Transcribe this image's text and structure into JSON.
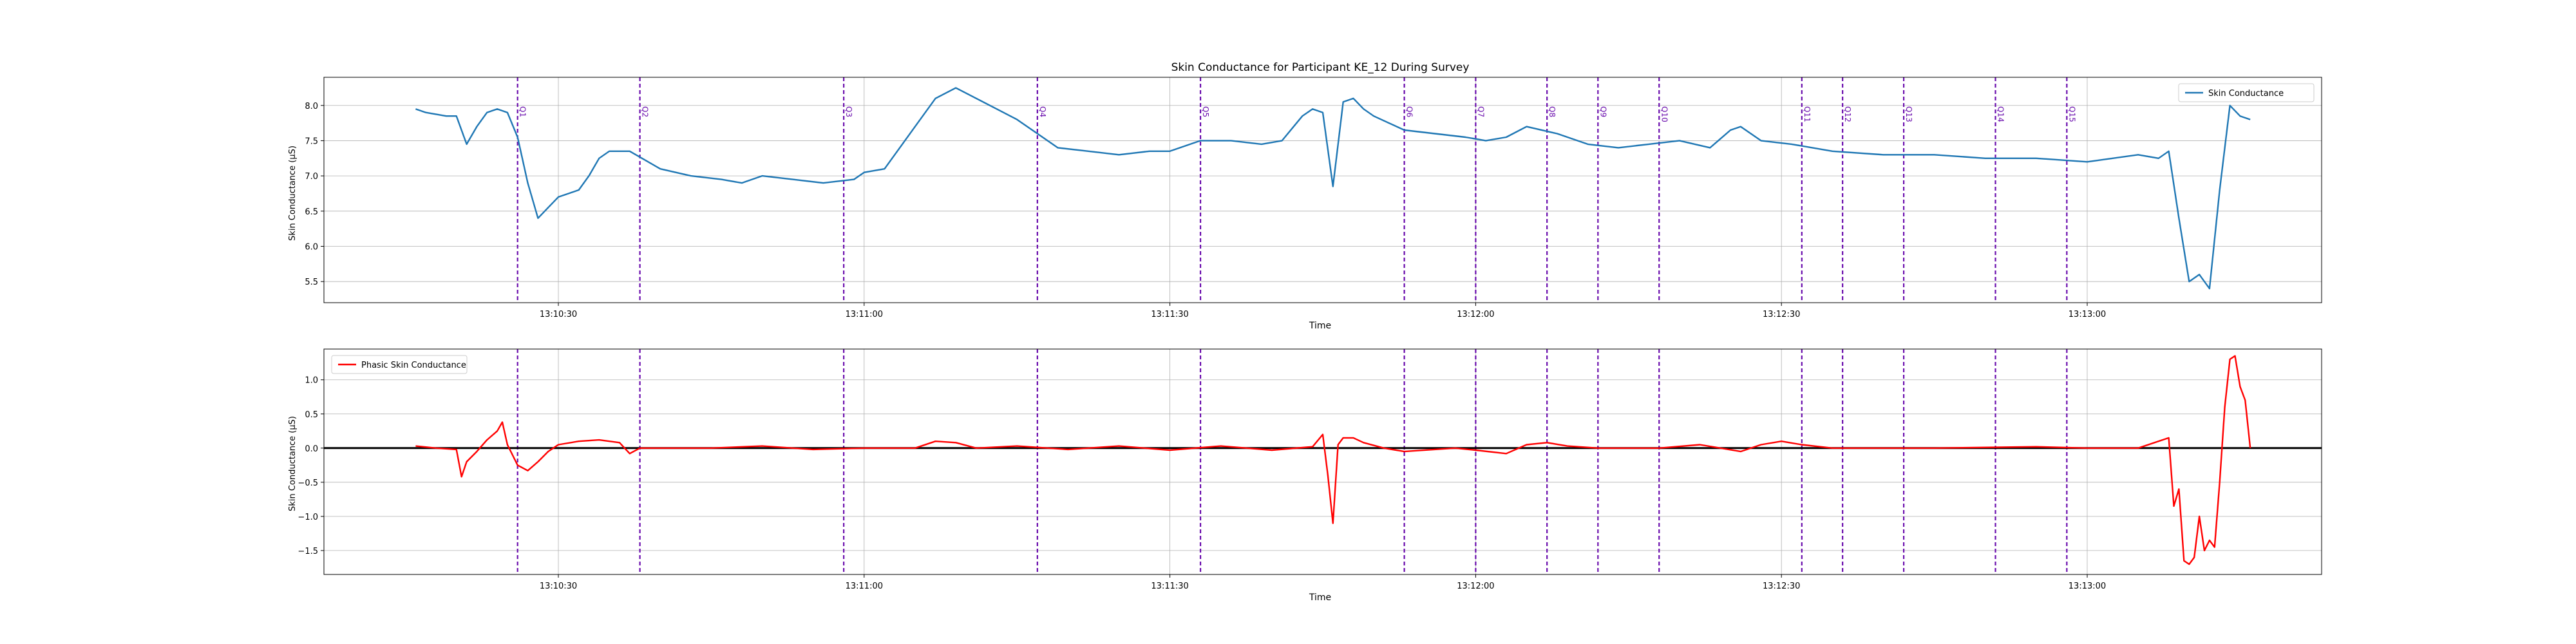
{
  "chart_data": [
    {
      "type": "line",
      "title": "Skin Conductance for Participant KE_12 During Survey",
      "xlabel": "Time",
      "ylabel": "Skin Conductance (µS)",
      "xlim": [
        "13:10:07",
        "13:13:23"
      ],
      "ylim": [
        5.2,
        8.4
      ],
      "grid": true,
      "legend": "top-right",
      "x_ticks": [
        "13:10:30",
        "13:11:00",
        "13:11:30",
        "13:12:00",
        "13:12:30",
        "13:13:00"
      ],
      "y_ticks": [
        5.5,
        6.0,
        6.5,
        7.0,
        7.5,
        8.0
      ],
      "series": [
        {
          "name": "Skin Conductance",
          "color": "#1f77b4",
          "x": [
            "13:10:16",
            "13:10:17",
            "13:10:19",
            "13:10:20",
            "13:10:21",
            "13:10:22",
            "13:10:23",
            "13:10:24",
            "13:10:25",
            "13:10:26",
            "13:10:27",
            "13:10:28",
            "13:10:29",
            "13:10:30",
            "13:10:31",
            "13:10:32",
            "13:10:33",
            "13:10:34",
            "13:10:35",
            "13:10:37",
            "13:10:40",
            "13:10:43",
            "13:10:46",
            "13:10:48",
            "13:10:50",
            "13:10:53",
            "13:10:56",
            "13:10:59",
            "13:11:00",
            "13:11:02",
            "13:11:03",
            "13:11:05",
            "13:11:07",
            "13:11:09",
            "13:11:11",
            "13:11:13",
            "13:11:15",
            "13:11:17",
            "13:11:19",
            "13:11:22",
            "13:11:25",
            "13:11:28",
            "13:11:30",
            "13:11:33",
            "13:11:36",
            "13:11:39",
            "13:11:41",
            "13:11:43",
            "13:11:44",
            "13:11:45",
            "13:11:46",
            "13:11:47",
            "13:11:48",
            "13:11:49",
            "13:11:50",
            "13:11:53",
            "13:11:56",
            "13:11:59",
            "13:12:01",
            "13:12:03",
            "13:12:05",
            "13:12:08",
            "13:12:11",
            "13:12:14",
            "13:12:17",
            "13:12:20",
            "13:12:23",
            "13:12:25",
            "13:12:26",
            "13:12:27",
            "13:12:28",
            "13:12:31",
            "13:12:35",
            "13:12:40",
            "13:12:45",
            "13:12:50",
            "13:12:55",
            "13:13:00",
            "13:13:05",
            "13:13:07",
            "13:13:08",
            "13:13:09",
            "13:13:10",
            "13:13:11",
            "13:13:12",
            "13:13:13",
            "13:13:14",
            "13:13:15",
            "13:13:16"
          ],
          "y": [
            7.95,
            7.9,
            7.85,
            7.85,
            7.45,
            7.7,
            7.9,
            7.95,
            7.9,
            7.55,
            6.9,
            6.4,
            6.55,
            6.7,
            6.75,
            6.8,
            7.0,
            7.25,
            7.35,
            7.35,
            7.1,
            7.0,
            6.95,
            6.9,
            7.0,
            6.95,
            6.9,
            6.95,
            7.05,
            7.1,
            7.3,
            7.7,
            8.1,
            8.25,
            8.1,
            7.95,
            7.8,
            7.6,
            7.4,
            7.35,
            7.3,
            7.35,
            7.35,
            7.5,
            7.5,
            7.45,
            7.5,
            7.85,
            7.95,
            7.9,
            6.85,
            8.05,
            8.1,
            7.95,
            7.85,
            7.65,
            7.6,
            7.55,
            7.5,
            7.55,
            7.7,
            7.6,
            7.45,
            7.4,
            7.45,
            7.5,
            7.4,
            7.65,
            7.7,
            7.6,
            7.5,
            7.45,
            7.35,
            7.3,
            7.3,
            7.25,
            7.25,
            7.2,
            7.3,
            7.25,
            7.35,
            6.4,
            5.5,
            5.6,
            5.4,
            6.8,
            8.0,
            7.85,
            7.8
          ]
        }
      ],
      "vlines": {
        "color": "#6a0dad",
        "style": "dashed",
        "x": [
          "13:10:26",
          "13:10:38",
          "13:10:58",
          "13:11:17",
          "13:11:33",
          "13:11:53",
          "13:12:00",
          "13:12:07",
          "13:12:12",
          "13:12:18",
          "13:12:32",
          "13:12:36",
          "13:12:42",
          "13:12:51",
          "13:12:58"
        ],
        "labels": [
          "Q1",
          "Q2",
          "Q3",
          "Q4",
          "Q5",
          "Q6",
          "Q7",
          "Q8",
          "Q9",
          "Q10",
          "Q11",
          "Q12",
          "Q13",
          "Q14",
          "Q15"
        ]
      }
    },
    {
      "type": "line",
      "title": "",
      "xlabel": "Time",
      "ylabel": "Skin Conductance (µS)",
      "xlim": [
        "13:10:07",
        "13:13:23"
      ],
      "ylim": [
        -1.85,
        1.45
      ],
      "grid": true,
      "legend": "top-left",
      "x_ticks": [
        "13:10:30",
        "13:11:00",
        "13:11:30",
        "13:12:00",
        "13:12:30",
        "13:13:00"
      ],
      "y_ticks": [
        -1.5,
        -1.0,
        -0.5,
        0.0,
        0.5,
        1.0
      ],
      "hline": {
        "y": 0.0,
        "color": "#000000"
      },
      "series": [
        {
          "name": "Phasic Skin Conductance",
          "color": "#ff0000",
          "x": [
            "13:10:16",
            "13:10:18",
            "13:10:20",
            "13:10:20.5",
            "13:10:21",
            "13:10:22",
            "13:10:23",
            "13:10:24",
            "13:10:24.5",
            "13:10:25",
            "13:10:26",
            "13:10:27",
            "13:10:28",
            "13:10:29",
            "13:10:30",
            "13:10:32",
            "13:10:34",
            "13:10:36",
            "13:10:37",
            "13:10:38",
            "13:10:45",
            "13:10:50",
            "13:10:55",
            "13:11:00",
            "13:11:05",
            "13:11:07",
            "13:11:09",
            "13:11:11",
            "13:11:15",
            "13:11:20",
            "13:11:25",
            "13:11:30",
            "13:11:35",
            "13:11:40",
            "13:11:44",
            "13:11:45",
            "13:11:45.5",
            "13:11:46",
            "13:11:46.5",
            "13:11:47",
            "13:11:48",
            "13:11:49",
            "13:11:51",
            "13:11:53",
            "13:11:58",
            "13:12:00",
            "13:12:03",
            "13:12:05",
            "13:12:07",
            "13:12:09",
            "13:12:12",
            "13:12:18",
            "13:12:22",
            "13:12:26",
            "13:12:28",
            "13:12:30",
            "13:12:32",
            "13:12:35",
            "13:12:45",
            "13:12:55",
            "13:13:00",
            "13:13:05",
            "13:13:08",
            "13:13:08.5",
            "13:13:09",
            "13:13:09.5",
            "13:13:10",
            "13:13:10.5",
            "13:13:11",
            "13:13:11.5",
            "13:13:12",
            "13:13:12.5",
            "13:13:13",
            "13:13:13.5",
            "13:13:14",
            "13:13:14.5",
            "13:13:15",
            "13:13:15.5",
            "13:13:16"
          ],
          "y": [
            0.03,
            0.0,
            -0.02,
            -0.42,
            -0.2,
            -0.05,
            0.12,
            0.25,
            0.38,
            0.05,
            -0.25,
            -0.33,
            -0.2,
            -0.05,
            0.05,
            0.1,
            0.12,
            0.08,
            -0.08,
            0.0,
            0.0,
            0.03,
            -0.02,
            0.0,
            0.0,
            0.1,
            0.08,
            0.0,
            0.03,
            -0.02,
            0.03,
            -0.03,
            0.03,
            -0.03,
            0.02,
            0.2,
            -0.4,
            -1.1,
            0.05,
            0.15,
            0.15,
            0.08,
            0.0,
            -0.05,
            0.0,
            -0.03,
            -0.08,
            0.05,
            0.08,
            0.03,
            0.0,
            0.0,
            0.05,
            -0.05,
            0.05,
            0.1,
            0.05,
            0.0,
            0.0,
            0.02,
            0.0,
            0.0,
            0.15,
            -0.85,
            -0.6,
            -1.65,
            -1.7,
            -1.6,
            -1.0,
            -1.5,
            -1.35,
            -1.45,
            -0.5,
            0.6,
            1.3,
            1.35,
            0.9,
            0.7,
            0.0
          ]
        }
      ],
      "vlines": {
        "color": "#6a0dad",
        "style": "dashed",
        "x": [
          "13:10:26",
          "13:10:38",
          "13:10:58",
          "13:11:17",
          "13:11:33",
          "13:11:53",
          "13:12:00",
          "13:12:07",
          "13:12:12",
          "13:12:18",
          "13:12:32",
          "13:12:36",
          "13:12:42",
          "13:12:51",
          "13:12:58"
        ]
      }
    }
  ]
}
